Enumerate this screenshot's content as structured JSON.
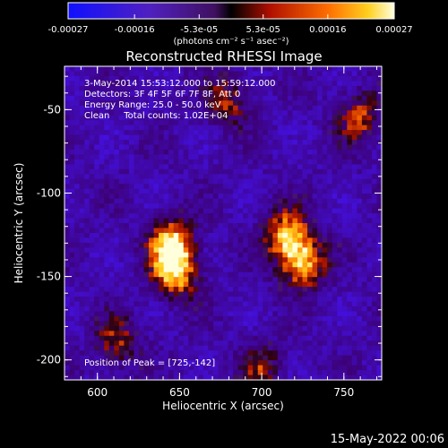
{
  "chart_data": {
    "type": "heatmap",
    "title": "Reconstructed RHESSI Image",
    "xlabel": "Heliocentric X (arcsec)",
    "ylabel": "Heliocentric Y (arcsec)",
    "x_ticks": [
      600,
      650,
      700,
      750
    ],
    "y_ticks": [
      -50,
      -100,
      -150,
      -200
    ],
    "xlim": [
      580,
      773
    ],
    "ylim": [
      -212,
      -24
    ],
    "colorbar": {
      "ticks": [
        "-0.00027",
        "-0.00016",
        "-5.3e-05",
        "5.3e-05",
        "0.00016",
        "0.00027"
      ],
      "range": [
        -0.00027,
        0.00027
      ],
      "units": "(photons cm⁻² s⁻¹ asec⁻²)"
    },
    "annotations": [
      "3-May-2014 15:53:12.000 to 15:59:12.000",
      "Detectors: 3F 4F 5F 6F 7F 8F, Att 0",
      "Energy Range: 25.0 - 50.0 keV",
      "Clean     Total counts: 1.02E+04"
    ],
    "peak_label": "Position of Peak = [725,-142]",
    "peak": [
      725,
      -142
    ],
    "sources": [
      {
        "x": 645,
        "y": -130,
        "amp": 0.00027
      },
      {
        "x": 648,
        "y": -148,
        "amp": 0.00025
      },
      {
        "x": 715,
        "y": -125,
        "amp": 0.00024
      },
      {
        "x": 725,
        "y": -142,
        "amp": 0.00027
      },
      {
        "x": 680,
        "y": -45,
        "amp": 0.00016
      },
      {
        "x": 760,
        "y": -55,
        "amp": 0.00018
      },
      {
        "x": 612,
        "y": -190,
        "amp": 0.00016
      },
      {
        "x": 700,
        "y": -205,
        "amp": 0.00014
      }
    ]
  },
  "footer_date": "15-May-2022 00:06"
}
